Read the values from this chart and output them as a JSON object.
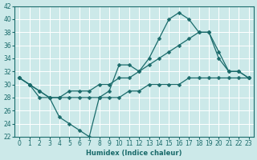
{
  "xlabel": "Humidex (Indice chaleur)",
  "bg_color": "#cce9e9",
  "grid_color": "#ffffff",
  "line_color": "#1a6b6b",
  "y_curve": [
    31,
    30,
    28,
    28,
    25,
    24,
    23,
    22,
    28,
    29,
    33,
    33,
    32,
    34,
    37,
    40,
    41,
    40,
    38,
    38,
    34,
    32,
    32,
    31
  ],
  "y_upper": [
    31,
    30,
    29,
    28,
    28,
    29,
    29,
    29,
    30,
    30,
    31,
    31,
    32,
    33,
    34,
    35,
    36,
    37,
    38,
    38,
    35,
    32,
    32,
    31
  ],
  "y_lower": [
    31,
    30,
    29,
    28,
    28,
    28,
    28,
    28,
    28,
    28,
    28,
    29,
    29,
    30,
    30,
    30,
    30,
    31,
    31,
    31,
    31,
    31,
    31,
    31
  ],
  "x": [
    0,
    1,
    2,
    3,
    4,
    5,
    6,
    7,
    8,
    9,
    10,
    11,
    12,
    13,
    14,
    15,
    16,
    17,
    18,
    19,
    20,
    21,
    22,
    23
  ],
  "ylim": [
    22,
    42
  ],
  "xlim": [
    -0.5,
    23.5
  ]
}
